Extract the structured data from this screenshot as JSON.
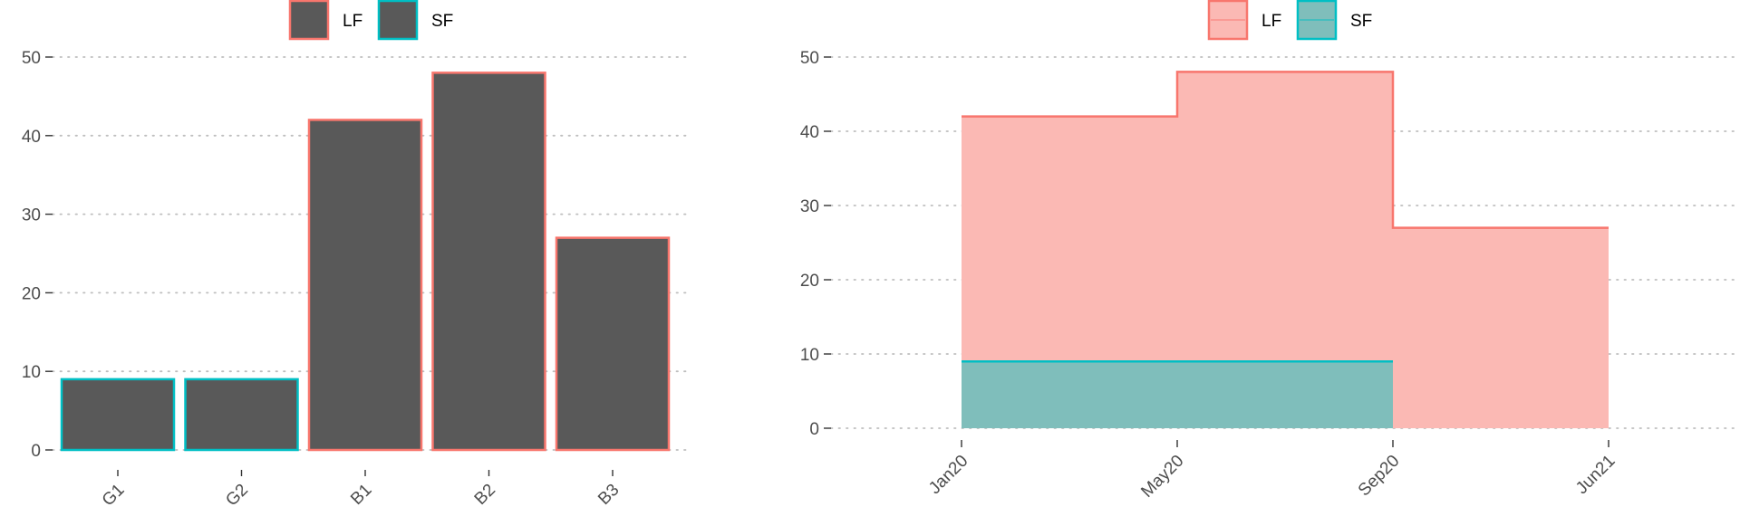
{
  "colors": {
    "lf": "#F8766D",
    "sf": "#00BFC4",
    "bar_fill": "#595959",
    "lf_area": "#FBB9B4",
    "sf_area": "#7FBEBB",
    "grid": "#BEBEBE",
    "text": "#4D4D4D"
  },
  "chart_data": [
    {
      "type": "bar",
      "title": "",
      "xlabel": "",
      "ylabel": "",
      "categories": [
        "G1",
        "G2",
        "B1",
        "B2",
        "B3"
      ],
      "values": [
        9,
        9,
        42,
        48,
        27
      ],
      "groups": [
        "SF",
        "SF",
        "LF",
        "LF",
        "LF"
      ],
      "ylim": [
        0,
        50
      ],
      "yticks": [
        "0",
        "10",
        "20",
        "30",
        "40",
        "50"
      ],
      "grid": true,
      "legend": {
        "position": "top",
        "entries": [
          "LF",
          "SF"
        ]
      }
    },
    {
      "type": "area",
      "title": "",
      "xlabel": "",
      "ylabel": "",
      "step": true,
      "x_ticks": [
        "Jan20",
        "May20",
        "Sep20",
        "Jun21"
      ],
      "series": [
        {
          "name": "LF",
          "x": [
            "Jan20",
            "May20",
            "Sep20",
            "Jun21"
          ],
          "values": [
            42,
            48,
            27,
            27
          ]
        },
        {
          "name": "SF",
          "x": [
            "Jan20",
            "Sep20"
          ],
          "values": [
            9,
            9
          ]
        }
      ],
      "ylim": [
        0,
        50
      ],
      "yticks": [
        "0",
        "10",
        "20",
        "30",
        "40",
        "50"
      ],
      "grid": true,
      "legend": {
        "position": "top",
        "entries": [
          "LF",
          "SF"
        ]
      }
    }
  ]
}
